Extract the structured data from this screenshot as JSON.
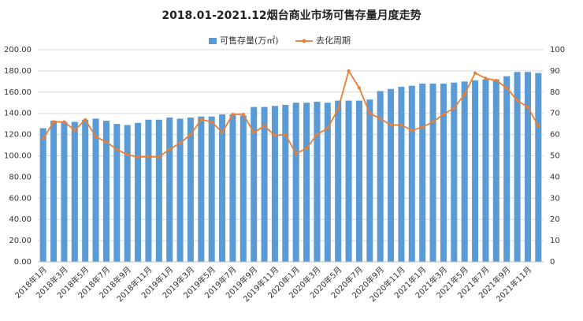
{
  "chart_data": {
    "type": "bar-line",
    "title": "2018.01-2021.12烟台商业市场可售存量月度走势",
    "categories": [
      "2018年1月",
      null,
      "2018年3月",
      null,
      "2018年5月",
      null,
      "2018年7月",
      null,
      "2018年9月",
      null,
      "2018年11月",
      null,
      "2019年1月",
      null,
      "2019年3月",
      null,
      "2019年5月",
      null,
      "2019年7月",
      null,
      "2019年9月",
      null,
      "2019年11月",
      null,
      "2020年1月",
      null,
      "2020年3月",
      null,
      "2020年5月",
      null,
      "2020年7月",
      null,
      "2020年9月",
      null,
      "2020年11月",
      null,
      "2021年1月",
      null,
      "2021年3月",
      null,
      "2021年5月",
      null,
      "2021年7月",
      null,
      "2021年9月",
      null,
      "2021年11月",
      null
    ],
    "series": [
      {
        "name": "可售存量(万㎡)",
        "color": "#5b9bd5",
        "axis": "y",
        "values": [
          126,
          133,
          132,
          132,
          134,
          135,
          133,
          130,
          129,
          131,
          134,
          134,
          136,
          135,
          136,
          137,
          137,
          139,
          139,
          138,
          146,
          146,
          147,
          148,
          150,
          150,
          151,
          150,
          152,
          152,
          152,
          153,
          161,
          163,
          165,
          166,
          168,
          168,
          168,
          169,
          170,
          171,
          172,
          172,
          175,
          179,
          179,
          178
        ]
      },
      {
        "name": "去化周期",
        "color": "#ed7d31",
        "axis": "y2",
        "values": [
          58,
          66,
          66,
          62,
          67,
          59,
          56.5,
          53,
          50.5,
          49.5,
          49.5,
          49.5,
          53,
          56,
          60,
          67,
          66,
          61,
          69.5,
          69.5,
          61,
          64,
          59.5,
          60,
          51,
          53.5,
          60,
          63,
          72,
          90,
          82,
          70,
          67.5,
          64.5,
          64.5,
          62,
          63.5,
          66,
          69.5,
          72.5,
          79,
          89,
          86.5,
          85.5,
          82,
          76,
          73,
          64
        ]
      }
    ],
    "ylim": [
      0,
      200
    ],
    "yticks": [
      {
        "value": 0,
        "label": "0.00"
      },
      {
        "value": 20,
        "label": "20.00"
      },
      {
        "value": 40,
        "label": "40.00"
      },
      {
        "value": 60,
        "label": "60.00"
      },
      {
        "value": 80,
        "label": "80.00"
      },
      {
        "value": 100,
        "label": "100.00"
      },
      {
        "value": 120,
        "label": "120.00"
      },
      {
        "value": 140,
        "label": "140.00"
      },
      {
        "value": 160,
        "label": "160.00"
      },
      {
        "value": 180,
        "label": "180.00"
      },
      {
        "value": 200,
        "label": "200.00"
      }
    ],
    "y2lim": [
      0,
      100
    ],
    "y2ticks": [
      0,
      10,
      20,
      30,
      40,
      50,
      60,
      70,
      80,
      90,
      100
    ],
    "grid": true
  }
}
